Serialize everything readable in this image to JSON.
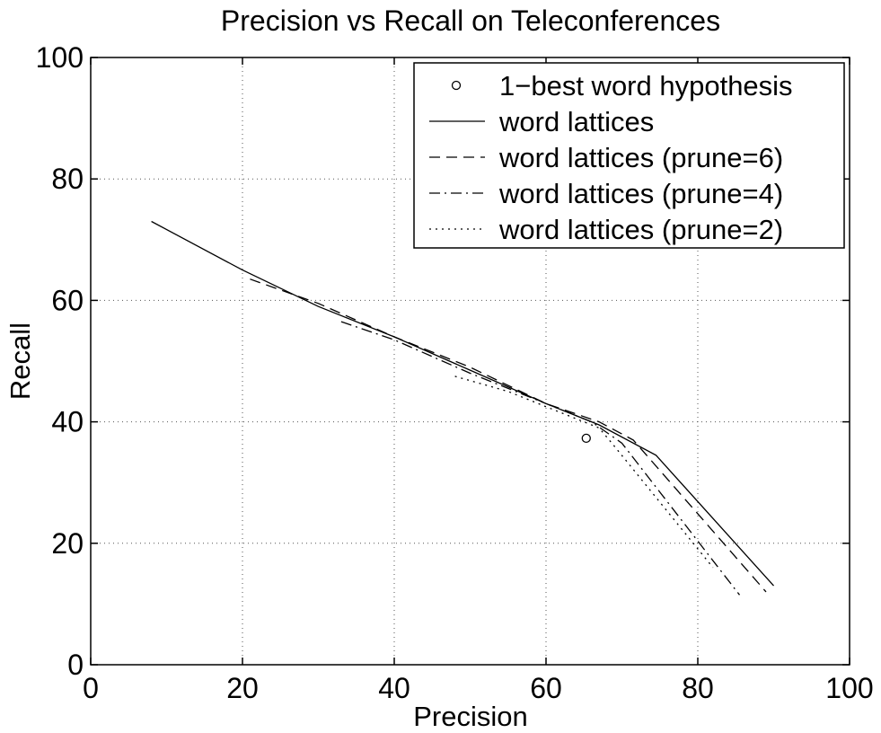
{
  "chart_data": {
    "type": "line",
    "title": "Precision vs Recall on Teleconferences",
    "xlabel": "Precision",
    "ylabel": "Recall",
    "xlim": [
      0,
      100
    ],
    "ylim": [
      0,
      100
    ],
    "xticks": [
      "0",
      "20",
      "40",
      "60",
      "80",
      "100"
    ],
    "yticks": [
      "0",
      "20",
      "40",
      "60",
      "80",
      "100"
    ],
    "grid": true,
    "legend_position": "top-right",
    "series": [
      {
        "name": "1−best word hypothesis",
        "style": "marker-circle",
        "x": [
          65.3
        ],
        "y": [
          37.3
        ]
      },
      {
        "name": "word lattices",
        "style": "solid",
        "x": [
          8,
          20,
          30,
          40,
          50,
          60,
          67,
          74.5,
          90
        ],
        "y": [
          73,
          65,
          59,
          54,
          48.5,
          43,
          39.5,
          34.5,
          13
        ]
      },
      {
        "name": "word lattices (prune=6)",
        "style": "dashed",
        "x": [
          21,
          30,
          40,
          50,
          60,
          67,
          71.5,
          89
        ],
        "y": [
          63.5,
          59.5,
          54,
          49,
          43,
          40,
          37,
          12
        ]
      },
      {
        "name": "word lattices (prune=4)",
        "style": "dashdot",
        "x": [
          33,
          40,
          50,
          60,
          66,
          70,
          85.5
        ],
        "y": [
          56.5,
          53.5,
          48,
          43,
          40,
          36.5,
          11.5
        ]
      },
      {
        "name": "word lattices (prune=2)",
        "style": "dotted",
        "x": [
          48,
          55,
          62,
          67,
          69,
          82
        ],
        "y": [
          47.5,
          45,
          41.5,
          39,
          36,
          16
        ]
      }
    ]
  }
}
